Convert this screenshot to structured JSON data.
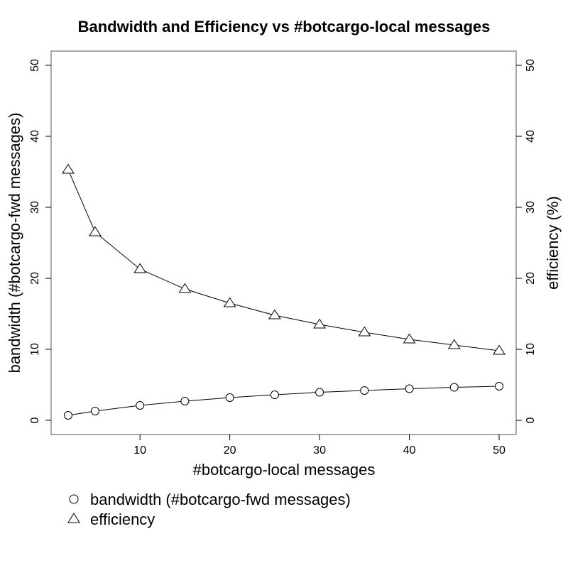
{
  "chart_data": {
    "type": "line",
    "title": "Bandwidth and Efficiency vs #botcargo-local messages",
    "xlabel": "#botcargo-local messages",
    "ylabel_left": "bandwidth (#botcargo-fwd messages)",
    "ylabel_right": "efficiency (%)",
    "x": [
      2,
      5,
      10,
      15,
      20,
      25,
      30,
      35,
      40,
      45,
      50
    ],
    "xlim": [
      2,
      50
    ],
    "ylim": [
      0,
      50
    ],
    "x_ticks": [
      10,
      20,
      30,
      40,
      50
    ],
    "y_ticks": [
      0,
      10,
      20,
      30,
      40,
      50
    ],
    "grid": false,
    "legend_position": "bottom-left, below plot",
    "series": [
      {
        "name": "bandwidth (#botcargo-fwd messages)",
        "marker": "circle",
        "axis": "left",
        "values": [
          0.7,
          1.3,
          2.1,
          2.7,
          3.2,
          3.6,
          3.95,
          4.2,
          4.45,
          4.65,
          4.8
        ]
      },
      {
        "name": "efficiency",
        "marker": "triangle",
        "axis": "right",
        "values": [
          35.3,
          26.5,
          21.3,
          18.5,
          16.5,
          14.8,
          13.5,
          12.4,
          11.4,
          10.6,
          9.8
        ]
      }
    ],
    "colors": {
      "line": "#000000",
      "background": "#ffffff"
    }
  }
}
